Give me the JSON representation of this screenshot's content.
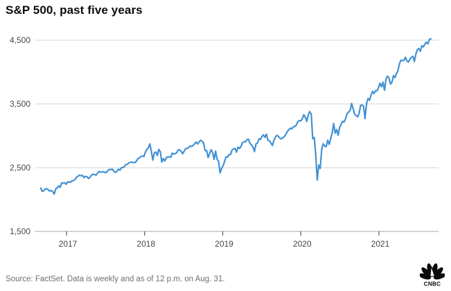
{
  "page": {
    "title": "S&P 500, past five years",
    "source_note": "Source: FactSet. Data is weekly and as of 12 p.m. on Aug. 31.",
    "logo_text": "CNBC"
  },
  "colors": {
    "line": "#4291d4",
    "gridline": "#d4d4d4",
    "axis_line": "#a6a9ad",
    "tick_text": "#44484c",
    "title_text": "#0d0d0d",
    "source_text": "#6b6e73",
    "logo": "#0b0b0b",
    "background": "#ffffff"
  },
  "chart_data": {
    "type": "line",
    "title": "S&P 500, past five years",
    "xlabel": "",
    "ylabel": "",
    "legend": "none",
    "grid": "horizontal",
    "xlim": [
      2016.63,
      2021.72
    ],
    "ylim": [
      1500,
      4700
    ],
    "x_ticks": [
      {
        "value": 2017,
        "label": "2017"
      },
      {
        "value": 2018,
        "label": "2018"
      },
      {
        "value": 2019,
        "label": "2019"
      },
      {
        "value": 2020,
        "label": "2020"
      },
      {
        "value": 2021,
        "label": "2021"
      }
    ],
    "y_ticks": [
      {
        "value": 4500,
        "label": "4,500"
      },
      {
        "value": 3500,
        "label": "3,500"
      },
      {
        "value": 2500,
        "label": "2,500"
      },
      {
        "value": 1500,
        "label": "1,500"
      }
    ],
    "series": [
      {
        "name": "S&P 500",
        "frequency": "weekly",
        "x_start": 2016.67,
        "x_end": 2021.664,
        "values": [
          2180,
          2128,
          2139,
          2165,
          2168,
          2154,
          2133,
          2141,
          2126,
          2085,
          2164,
          2182,
          2213,
          2192,
          2260,
          2258,
          2264,
          2239,
          2277,
          2275,
          2271,
          2295,
          2297,
          2316,
          2351,
          2367,
          2383,
          2373,
          2378,
          2344,
          2363,
          2356,
          2329,
          2349,
          2384,
          2399,
          2391,
          2382,
          2416,
          2439,
          2432,
          2433,
          2438,
          2423,
          2425,
          2459,
          2473,
          2472,
          2477,
          2441,
          2426,
          2443,
          2476,
          2461,
          2500,
          2502,
          2519,
          2549,
          2553,
          2575,
          2581,
          2588,
          2582,
          2579,
          2602,
          2642,
          2652,
          2676,
          2683,
          2674,
          2743,
          2786,
          2810,
          2873,
          2762,
          2620,
          2732,
          2747,
          2691,
          2787,
          2752,
          2588,
          2641,
          2604,
          2656,
          2670,
          2670,
          2663,
          2728,
          2713,
          2721,
          2735,
          2779,
          2780,
          2755,
          2718,
          2760,
          2801,
          2802,
          2819,
          2840,
          2833,
          2850,
          2875,
          2902,
          2872,
          2905,
          2930,
          2914,
          2886,
          2767,
          2768,
          2659,
          2723,
          2781,
          2736,
          2632,
          2760,
          2633,
          2600,
          2417,
          2486,
          2532,
          2596,
          2671,
          2665,
          2707,
          2708,
          2776,
          2793,
          2803,
          2743,
          2822,
          2801,
          2834,
          2893,
          2907,
          2905,
          2940,
          2946,
          2881,
          2860,
          2826,
          2752,
          2873,
          2887,
          2950,
          2942,
          2990,
          3014,
          2977,
          3026,
          2932,
          2919,
          2889,
          2847,
          2926,
          2979,
          3007,
          2992,
          2962,
          2952,
          2970,
          2986,
          3023,
          3067,
          3093,
          3120,
          3110,
          3141,
          3146,
          3169,
          3221,
          3240,
          3235,
          3265,
          3330,
          3295,
          3226,
          3328,
          3380,
          3338,
          2954,
          2972,
          2711,
          2305,
          2541,
          2489,
          2790,
          2875,
          2837,
          2831,
          2930,
          2864,
          2955,
          3044,
          3194,
          3041,
          3098,
          3009,
          3130,
          3185,
          3225,
          3216,
          3271,
          3351,
          3373,
          3397,
          3508,
          3427,
          3341,
          3319,
          3298,
          3348,
          3477,
          3484,
          3465,
          3270,
          3509,
          3585,
          3558,
          3638,
          3699,
          3663,
          3709,
          3703,
          3756,
          3825,
          3768,
          3841,
          3714,
          3887,
          3935,
          3907,
          3811,
          3842,
          3943,
          3913,
          3975,
          4020,
          4129,
          4185,
          4180,
          4181,
          4233,
          4174,
          4156,
          4204,
          4230,
          4247,
          4166,
          4281,
          4352,
          4370,
          4327,
          4412,
          4395,
          4437,
          4468,
          4442,
          4509,
          4523
        ]
      }
    ]
  }
}
